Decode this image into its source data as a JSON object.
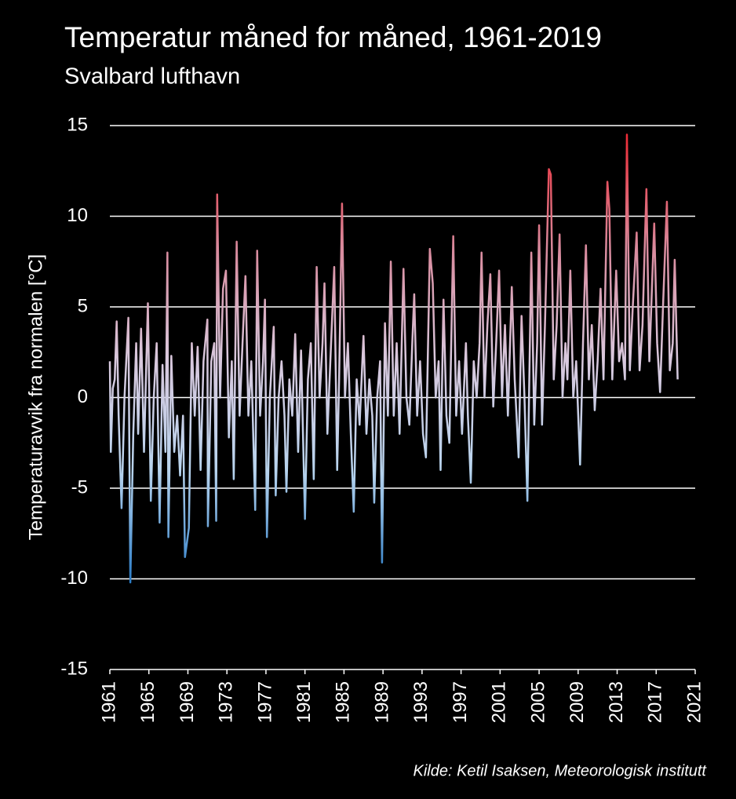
{
  "chart_data": {
    "type": "line",
    "title": "Temperatur måned for måned, 1961-2019",
    "subtitle": "Svalbard lufthavn",
    "y_label": "Temperaturavvik fra normalen [°C]",
    "source": "Kilde: Ketil Isaksen, Meteorologisk institutt",
    "xlim": [
      1961,
      2021
    ],
    "xticks": [
      1961,
      1965,
      1969,
      1973,
      1977,
      1981,
      1985,
      1989,
      1993,
      1997,
      2001,
      2005,
      2009,
      2013,
      2017,
      2021
    ],
    "ylim": [
      -15,
      15
    ],
    "yticks": [
      -15,
      -10,
      -5,
      0,
      5,
      10,
      15
    ],
    "grid": true,
    "colors": [
      "#ee2b36",
      "#d9899c",
      "#d9c8dd",
      "#b8d4ee",
      "#2a7cc7"
    ],
    "x": [
      1961.0,
      1961.1,
      1961.3,
      1961.5,
      1961.7,
      1961.9,
      1962.2,
      1962.5,
      1962.9,
      1963.1,
      1963.4,
      1963.7,
      1963.9,
      1964.2,
      1964.5,
      1964.9,
      1965.2,
      1965.5,
      1965.8,
      1966.1,
      1966.4,
      1966.7,
      1966.9,
      1967.0,
      1967.3,
      1967.6,
      1967.9,
      1968.2,
      1968.5,
      1968.7,
      1969.1,
      1969.4,
      1969.7,
      1970.0,
      1970.3,
      1970.6,
      1971.0,
      1971.05,
      1971.4,
      1971.7,
      1971.9,
      1972.0,
      1972.3,
      1972.6,
      1972.9,
      1973.2,
      1973.5,
      1973.7,
      1974.0,
      1974.3,
      1974.6,
      1974.9,
      1975.2,
      1975.5,
      1975.9,
      1976.1,
      1976.4,
      1976.7,
      1976.9,
      1977.1,
      1977.4,
      1977.8,
      1978.0,
      1978.3,
      1978.6,
      1978.9,
      1979.1,
      1979.4,
      1979.7,
      1980.0,
      1980.3,
      1980.6,
      1981.0,
      1981.3,
      1981.6,
      1981.9,
      1982.2,
      1982.5,
      1982.8,
      1983.0,
      1983.3,
      1983.6,
      1984.0,
      1984.3,
      1984.5,
      1984.8,
      1985.1,
      1985.4,
      1985.7,
      1986.0,
      1986.3,
      1986.6,
      1987.0,
      1987.3,
      1987.6,
      1987.9,
      1988.1,
      1988.4,
      1988.7,
      1988.9,
      1989.2,
      1989.5,
      1989.8,
      1990.1,
      1990.4,
      1990.7,
      1991.1,
      1991.4,
      1991.7,
      1992.0,
      1992.2,
      1992.5,
      1992.8,
      1993.1,
      1993.4,
      1993.8,
      1994.1,
      1994.4,
      1994.7,
      1994.9,
      1995.2,
      1995.5,
      1995.8,
      1996.2,
      1996.5,
      1996.8,
      1997.1,
      1997.5,
      1997.7,
      1998.0,
      1998.3,
      1998.6,
      1998.9,
      1999.1,
      1999.4,
      1999.7,
      2000.0,
      2000.3,
      2000.6,
      2000.9,
      2001.2,
      2001.5,
      2001.8,
      2002.2,
      2002.5,
      2002.9,
      2003.2,
      2003.5,
      2003.8,
      2004.2,
      2004.5,
      2004.8,
      2005.0,
      2005.3,
      2005.6,
      2006.0,
      2006.2,
      2006.5,
      2006.8,
      2007.1,
      2007.4,
      2007.7,
      2007.9,
      2008.2,
      2008.5,
      2008.8,
      2009.2,
      2009.5,
      2009.8,
      2010.1,
      2010.4,
      2010.7,
      2011.0,
      2011.3,
      2011.6,
      2012.0,
      2012.2,
      2012.5,
      2012.9,
      2013.2,
      2013.5,
      2013.8,
      2014.0,
      2014.3,
      2014.6,
      2015.0,
      2015.3,
      2015.6,
      2016.0,
      2016.3,
      2016.8,
      2017.1,
      2017.4,
      2017.7,
      2018.1,
      2018.4,
      2018.7,
      2018.9,
      2019.2
    ],
    "values": [
      2,
      -3,
      0.5,
      1,
      4.2,
      -1,
      -6.1,
      0,
      4.4,
      -10.2,
      -2,
      3,
      -2,
      3.8,
      -3,
      5.2,
      -5.7,
      0,
      3,
      -6.9,
      1.8,
      -3,
      8,
      -7.7,
      2.3,
      -3,
      -1,
      -4.3,
      -1,
      -8.8,
      -7.2,
      3,
      -1,
      2.8,
      -4,
      2,
      4.3,
      -7.1,
      2,
      3,
      -6.8,
      11.2,
      0,
      6,
      7,
      -2.2,
      2,
      -4.5,
      8.6,
      -1,
      3,
      6.7,
      -1,
      2,
      -6.2,
      8.1,
      -1,
      2,
      5.4,
      -7.7,
      0,
      3.9,
      -5.4,
      0,
      2,
      -1,
      -5.2,
      1,
      -1,
      3.5,
      -3,
      2.6,
      -6.7,
      1,
      3,
      -4.5,
      7.2,
      0,
      3,
      6.3,
      -2,
      2,
      7.2,
      -4,
      1,
      10.7,
      0,
      3,
      -2,
      -6.3,
      1,
      -1.5,
      3.4,
      -2,
      1,
      -1,
      -5.8,
      0,
      2,
      -9.1,
      4.1,
      -1,
      7.5,
      -1,
      3,
      -2,
      7.1,
      0,
      -1.5,
      3,
      5.7,
      -1,
      2,
      -2,
      -3.3,
      8.2,
      6.3,
      0,
      2,
      -4,
      5.4,
      -1,
      -2.5,
      8.9,
      -1,
      2,
      -2,
      3,
      -1,
      -4.7,
      2,
      0,
      3,
      8,
      0,
      4,
      6.8,
      -0.5,
      3,
      7,
      0,
      4,
      -1,
      6.1,
      1,
      -3.3,
      4.5,
      0,
      -5.7,
      8,
      -1.5,
      3,
      9.5,
      -1.5,
      4,
      12.6,
      12.3,
      1,
      4,
      9,
      0,
      3,
      1,
      7,
      0,
      2,
      -3.7,
      3,
      8.4,
      1,
      4,
      -0.7,
      2,
      6,
      1,
      11.9,
      10.4,
      1,
      7,
      2,
      3,
      1,
      14.5,
      1.5,
      5,
      9.1,
      1.5,
      4,
      11.5,
      2,
      9.6,
      3,
      0.3,
      5,
      10.8,
      1.5,
      3,
      7.6,
      1
    ]
  }
}
